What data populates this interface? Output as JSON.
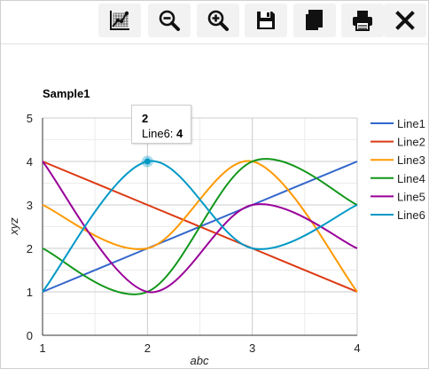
{
  "toolbar": {
    "buttons": [
      {
        "name": "trendline-button",
        "icon": "line-chart-icon"
      },
      {
        "name": "zoom-out-button",
        "icon": "zoom-out-icon"
      },
      {
        "name": "zoom-in-button",
        "icon": "zoom-in-icon"
      },
      {
        "name": "save-button",
        "icon": "floppy-disk-icon"
      },
      {
        "name": "copy-button",
        "icon": "copy-icon"
      },
      {
        "name": "print-button",
        "icon": "printer-icon"
      },
      {
        "name": "close-button",
        "icon": "close-icon"
      }
    ]
  },
  "chart_data": {
    "type": "line",
    "title": "Sample1",
    "xlabel": "abc",
    "ylabel": "xyz",
    "x": [
      1,
      2,
      3,
      4
    ],
    "xlim": [
      1,
      4
    ],
    "ylim": [
      0,
      5
    ],
    "x_ticks": [
      "1",
      "2",
      "3",
      "4"
    ],
    "y_ticks": [
      "0",
      "1",
      "2",
      "3",
      "4",
      "5"
    ],
    "grid": true,
    "smooth": true,
    "legend_position": "right",
    "series": [
      {
        "name": "Line1",
        "color": "#3366cc",
        "values": [
          1,
          2,
          3,
          4
        ]
      },
      {
        "name": "Line2",
        "color": "#dc3912",
        "values": [
          4,
          3,
          2,
          1
        ]
      },
      {
        "name": "Line3",
        "color": "#ff9900",
        "values": [
          3,
          2,
          4,
          1
        ]
      },
      {
        "name": "Line4",
        "color": "#109618",
        "values": [
          2,
          1,
          4,
          3
        ]
      },
      {
        "name": "Line5",
        "color": "#990099",
        "values": [
          4,
          1,
          3,
          2
        ]
      },
      {
        "name": "Line6",
        "color": "#0099c6",
        "values": [
          1,
          4,
          2,
          3
        ]
      }
    ],
    "tooltip": {
      "x_label": "2",
      "series": "Line6",
      "series_label": "Line6: ",
      "value": "4"
    }
  }
}
